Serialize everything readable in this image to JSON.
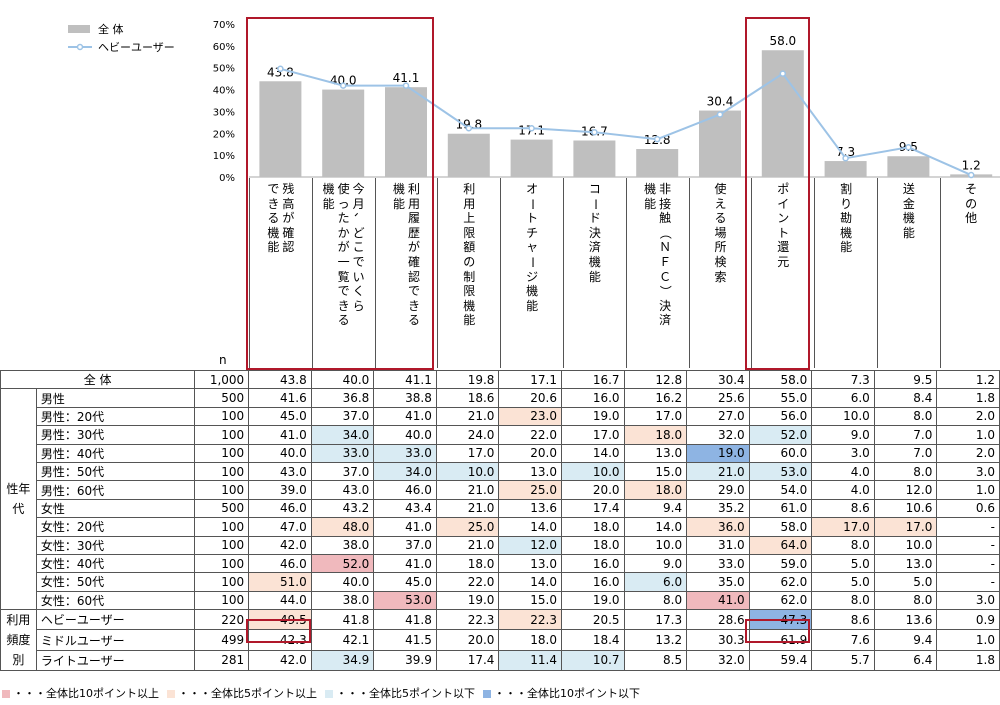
{
  "chart_data": {
    "type": "bar",
    "categories": [
      "残高が確認できる機能",
      "今月、どこでいくら使ったかが一覧できる機能",
      "利用履歴が確認できる機能",
      "利用上限額の制限機能",
      "オートチャージ機能",
      "コード決済機能",
      "非接触（ＮＦＣ）決済機能",
      "使える場所検索",
      "ポイント還元",
      "割り勘機能",
      "送金機能",
      "その他"
    ],
    "header_columns": [
      [
        [
          "残高が確認",
          "できる機能"
        ]
      ],
      [
        [
          "今月、どこでいくら",
          "使ったかが一覧できる",
          "機能"
        ]
      ],
      [
        [
          "利用履歴が確認できる",
          "機能"
        ]
      ],
      [
        [
          "利用上限額の制限機能"
        ]
      ],
      [
        [
          "オートチャージ機能"
        ]
      ],
      [
        [
          "コード決済機能"
        ]
      ],
      [
        [
          "非接触（ＮＦＣ）決済",
          "機能"
        ]
      ],
      [
        [
          "使える場所検索"
        ]
      ],
      [
        [
          "ポイント還元"
        ]
      ],
      [
        [
          "割り勘機能"
        ]
      ],
      [
        [
          "送金機能"
        ]
      ],
      [
        [
          "その他"
        ]
      ]
    ],
    "series": [
      {
        "name": "全 体",
        "type": "bar",
        "values": [
          43.8,
          40.0,
          41.1,
          19.8,
          17.1,
          16.7,
          12.8,
          30.4,
          58.0,
          7.3,
          9.5,
          1.2
        ],
        "color": "#bfbfbf"
      },
      {
        "name": "ヘビーユーザー",
        "type": "line",
        "values": [
          49.5,
          41.8,
          41.8,
          22.3,
          22.3,
          20.5,
          17.3,
          28.6,
          47.3,
          8.6,
          13.6,
          0.9
        ],
        "color": "#9dc3e6"
      }
    ],
    "data_labels": [
      "43.8",
      "40.0",
      "41.1",
      "19.8",
      "17.1",
      "16.7",
      "12.8",
      "30.4",
      "58.0",
      "7.3",
      "9.5",
      "1.2"
    ],
    "y_ticks": [
      "0%",
      "10%",
      "20%",
      "30%",
      "40%",
      "50%",
      "60%",
      "70%"
    ],
    "ylim": [
      0,
      70
    ],
    "n_label": "n",
    "legend_position": "top-left"
  },
  "table": {
    "rows": [
      {
        "group": "",
        "label": "全 体",
        "n": "1,000",
        "values": [
          "43.8",
          "40.0",
          "41.1",
          "19.8",
          "17.1",
          "16.7",
          "12.8",
          "30.4",
          "58.0",
          "7.3",
          "9.5",
          "1.2"
        ],
        "hl": [
          "",
          "",
          "",
          "",
          "",
          "",
          "",
          "",
          "",
          "",
          "",
          ""
        ]
      },
      {
        "group": "性年代",
        "label": "男性",
        "n": "500",
        "values": [
          "41.6",
          "36.8",
          "38.8",
          "18.6",
          "20.6",
          "16.0",
          "16.2",
          "25.6",
          "55.0",
          "6.0",
          "8.4",
          "1.8"
        ],
        "hl": [
          "",
          "",
          "",
          "",
          "",
          "",
          "",
          "",
          "",
          "",
          "",
          ""
        ]
      },
      {
        "group": "性年代",
        "label": "男性：20代",
        "n": "100",
        "values": [
          "45.0",
          "37.0",
          "41.0",
          "21.0",
          "23.0",
          "19.0",
          "17.0",
          "27.0",
          "56.0",
          "10.0",
          "8.0",
          "2.0"
        ],
        "hl": [
          "",
          "",
          "",
          "",
          "hi2",
          "",
          "",
          "",
          "",
          "",
          "",
          ""
        ]
      },
      {
        "group": "性年代",
        "label": "男性：30代",
        "n": "100",
        "values": [
          "41.0",
          "34.0",
          "40.0",
          "24.0",
          "22.0",
          "17.0",
          "18.0",
          "32.0",
          "52.0",
          "9.0",
          "7.0",
          "1.0"
        ],
        "hl": [
          "",
          "lo1",
          "",
          "",
          "",
          "",
          "hi2",
          "",
          "lo1",
          "",
          "",
          ""
        ]
      },
      {
        "group": "性年代",
        "label": "男性：40代",
        "n": "100",
        "values": [
          "40.0",
          "33.0",
          "33.0",
          "17.0",
          "20.0",
          "14.0",
          "13.0",
          "19.0",
          "60.0",
          "3.0",
          "7.0",
          "2.0"
        ],
        "hl": [
          "",
          "lo1",
          "lo1",
          "",
          "",
          "",
          "",
          "lo2",
          "",
          "",
          "",
          ""
        ]
      },
      {
        "group": "性年代",
        "label": "男性：50代",
        "n": "100",
        "values": [
          "43.0",
          "37.0",
          "34.0",
          "10.0",
          "13.0",
          "10.0",
          "15.0",
          "21.0",
          "53.0",
          "4.0",
          "8.0",
          "3.0"
        ],
        "hl": [
          "",
          "",
          "lo1",
          "lo1",
          "",
          "lo1",
          "",
          "lo1",
          "lo1",
          "",
          "",
          ""
        ]
      },
      {
        "group": "性年代",
        "label": "男性：60代",
        "n": "100",
        "values": [
          "39.0",
          "43.0",
          "46.0",
          "21.0",
          "25.0",
          "20.0",
          "18.0",
          "29.0",
          "54.0",
          "4.0",
          "12.0",
          "1.0"
        ],
        "hl": [
          "",
          "",
          "",
          "",
          "hi2",
          "",
          "hi2",
          "",
          "",
          "",
          "",
          ""
        ]
      },
      {
        "group": "性年代",
        "label": "女性",
        "n": "500",
        "values": [
          "46.0",
          "43.2",
          "43.4",
          "21.0",
          "13.6",
          "17.4",
          "9.4",
          "35.2",
          "61.0",
          "8.6",
          "10.6",
          "0.6"
        ],
        "hl": [
          "",
          "",
          "",
          "",
          "",
          "",
          "",
          "",
          "",
          "",
          "",
          ""
        ]
      },
      {
        "group": "性年代",
        "label": "女性：20代",
        "n": "100",
        "values": [
          "47.0",
          "48.0",
          "41.0",
          "25.0",
          "14.0",
          "18.0",
          "14.0",
          "36.0",
          "58.0",
          "17.0",
          "17.0",
          "-"
        ],
        "hl": [
          "",
          "hi2",
          "",
          "hi2",
          "",
          "",
          "",
          "hi2",
          "",
          "hi2",
          "hi2",
          ""
        ]
      },
      {
        "group": "性年代",
        "label": "女性：30代",
        "n": "100",
        "values": [
          "42.0",
          "38.0",
          "37.0",
          "21.0",
          "12.0",
          "18.0",
          "10.0",
          "31.0",
          "64.0",
          "8.0",
          "10.0",
          "-"
        ],
        "hl": [
          "",
          "",
          "",
          "",
          "lo1",
          "",
          "",
          "",
          "hi2",
          "",
          "",
          ""
        ]
      },
      {
        "group": "性年代",
        "label": "女性：40代",
        "n": "100",
        "values": [
          "46.0",
          "52.0",
          "41.0",
          "18.0",
          "13.0",
          "16.0",
          "9.0",
          "33.0",
          "59.0",
          "5.0",
          "13.0",
          "-"
        ],
        "hl": [
          "",
          "hi1",
          "",
          "",
          "",
          "",
          "",
          "",
          "",
          "",
          "",
          ""
        ]
      },
      {
        "group": "性年代",
        "label": "女性：50代",
        "n": "100",
        "values": [
          "51.0",
          "40.0",
          "45.0",
          "22.0",
          "14.0",
          "16.0",
          "6.0",
          "35.0",
          "62.0",
          "5.0",
          "5.0",
          "-"
        ],
        "hl": [
          "hi2",
          "",
          "",
          "",
          "",
          "",
          "lo1",
          "",
          "",
          "",
          "",
          ""
        ]
      },
      {
        "group": "性年代",
        "label": "女性：60代",
        "n": "100",
        "values": [
          "44.0",
          "38.0",
          "53.0",
          "19.0",
          "15.0",
          "19.0",
          "8.0",
          "41.0",
          "62.0",
          "8.0",
          "8.0",
          "3.0"
        ],
        "hl": [
          "",
          "",
          "hi1",
          "",
          "",
          "",
          "",
          "hi1",
          "",
          "",
          "",
          ""
        ]
      },
      {
        "group": "利用頻度別",
        "label": "ヘビーユーザー",
        "n": "220",
        "values": [
          "49.5",
          "41.8",
          "41.8",
          "22.3",
          "22.3",
          "20.5",
          "17.3",
          "28.6",
          "47.3",
          "8.6",
          "13.6",
          "0.9"
        ],
        "hl": [
          "hi2",
          "",
          "",
          "",
          "hi2",
          "",
          "",
          "",
          "lo2",
          "",
          "",
          ""
        ]
      },
      {
        "group": "利用頻度別",
        "label": "ミドルユーザー",
        "n": "499",
        "values": [
          "42.3",
          "42.1",
          "41.5",
          "20.0",
          "18.0",
          "18.4",
          "13.2",
          "30.3",
          "61.9",
          "7.6",
          "9.4",
          "1.0"
        ],
        "hl": [
          "",
          "",
          "",
          "",
          "",
          "",
          "",
          "",
          "",
          "",
          "",
          ""
        ]
      },
      {
        "group": "利用頻度別",
        "label": "ライトユーザー",
        "n": "281",
        "values": [
          "42.0",
          "34.9",
          "39.9",
          "17.4",
          "11.4",
          "10.7",
          "8.5",
          "32.0",
          "59.4",
          "5.7",
          "6.4",
          "1.8"
        ],
        "hl": [
          "",
          "lo1",
          "",
          "",
          "lo1",
          "lo1",
          "",
          "",
          "",
          "",
          "",
          ""
        ]
      }
    ],
    "group_labels": {
      "seinendai": "性年代",
      "riyou": "利用頻度別"
    }
  },
  "footer_legend": [
    {
      "text": "・・・全体比10ポイント以上",
      "color": "#f0b9bd"
    },
    {
      "text": "・・・全体比5ポイント以上",
      "color": "#fbe3d5"
    },
    {
      "text": "・・・全体比5ポイント以下",
      "color": "#d9ebf3"
    },
    {
      "text": "・・・全体比10ポイント以下",
      "color": "#8eb4e3"
    }
  ]
}
